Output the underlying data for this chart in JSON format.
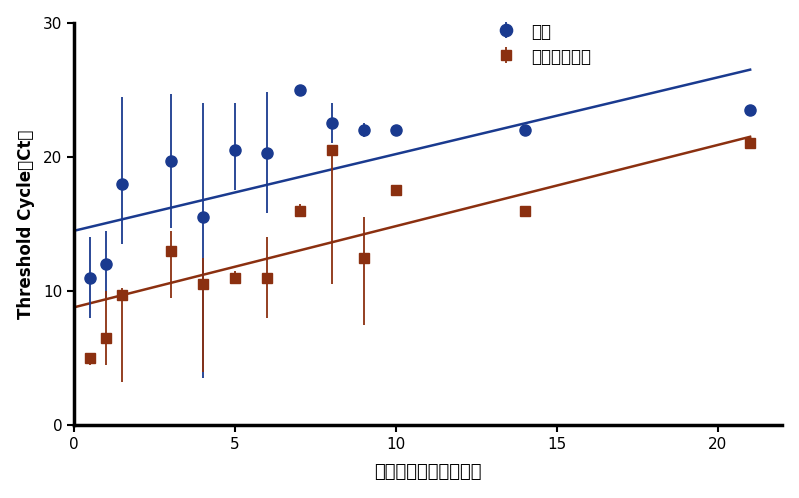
{
  "saliva_x": [
    0.5,
    1.0,
    1.5,
    3.0,
    4.0,
    5.0,
    6.0,
    7.0,
    8.0,
    9.0,
    10.0,
    14.0,
    21.0
  ],
  "saliva_y": [
    11.0,
    12.0,
    18.0,
    19.7,
    15.5,
    20.5,
    20.3,
    25.0,
    22.5,
    22.0,
    22.0,
    22.0,
    23.5
  ],
  "saliva_yerr_upper": [
    3.0,
    2.5,
    6.5,
    5.0,
    8.5,
    3.5,
    4.5,
    0.3,
    1.5,
    0.5,
    0.0,
    0.0,
    0.0
  ],
  "saliva_yerr_lower": [
    3.0,
    2.5,
    4.5,
    5.0,
    12.0,
    3.0,
    4.5,
    0.3,
    1.5,
    0.5,
    0.0,
    0.0,
    0.0
  ],
  "nps_x": [
    0.5,
    1.0,
    1.5,
    3.0,
    4.0,
    5.0,
    6.0,
    7.0,
    8.0,
    9.0,
    10.0,
    14.0,
    21.0
  ],
  "nps_y": [
    5.0,
    6.5,
    9.7,
    13.0,
    10.5,
    11.0,
    11.0,
    16.0,
    20.5,
    12.5,
    17.5,
    16.0,
    21.0
  ],
  "nps_yerr_upper": [
    0.0,
    3.5,
    0.5,
    1.5,
    2.0,
    0.5,
    3.0,
    0.5,
    0.0,
    3.0,
    0.0,
    0.0,
    0.0
  ],
  "nps_yerr_lower": [
    0.5,
    2.0,
    6.5,
    3.5,
    6.5,
    0.5,
    3.0,
    0.5,
    10.0,
    5.0,
    0.0,
    0.0,
    0.0
  ],
  "saliva_line_x": [
    0,
    21
  ],
  "saliva_line_y": [
    14.5,
    26.5
  ],
  "nps_line_x": [
    0,
    21
  ],
  "nps_line_y": [
    8.8,
    21.5
  ],
  "saliva_color": "#1a3a8f",
  "nps_color": "#8b3010",
  "xlabel": "発症からの時間（日）",
  "ylabel": "Threshold Cycle（Ct）",
  "legend_saliva": "唤液",
  "legend_nps": "鼻咽頭スワブ",
  "xlim": [
    0,
    22
  ],
  "ylim": [
    0,
    30
  ],
  "xticks": [
    0,
    5,
    10,
    15,
    20
  ],
  "yticks": [
    0,
    10,
    20,
    30
  ],
  "background_color": "#ffffff"
}
